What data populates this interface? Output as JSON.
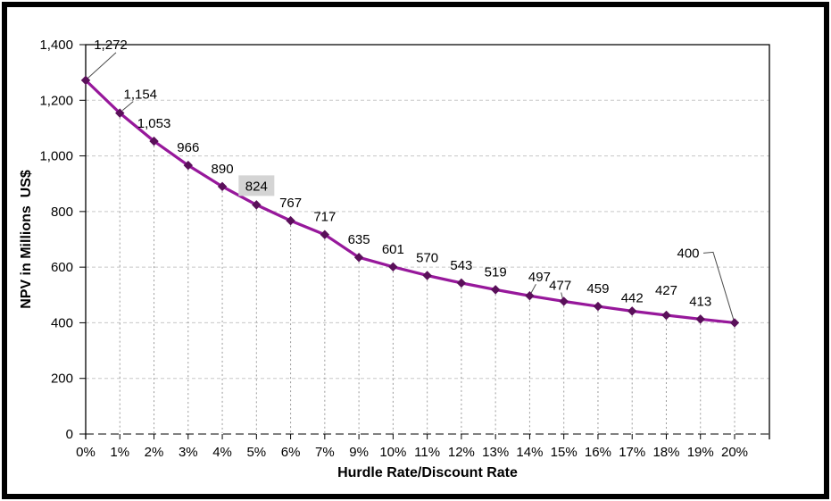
{
  "chart_data": {
    "type": "line",
    "title": "",
    "xlabel": "Hurdle Rate/Discount Rate",
    "ylabel": "NPV in Millions  US$",
    "categories": [
      "0%",
      "1%",
      "2%",
      "3%",
      "4%",
      "5%",
      "6%",
      "7%",
      "9%",
      "10%",
      "11%",
      "12%",
      "13%",
      "14%",
      "15%",
      "16%",
      "17%",
      "18%",
      "19%",
      "20%"
    ],
    "values": [
      1272,
      1154,
      1053,
      966,
      890,
      824,
      767,
      717,
      635,
      601,
      570,
      543,
      519,
      497,
      477,
      459,
      442,
      427,
      413,
      400
    ],
    "data_labels": [
      "1,272",
      "1,154",
      "1,053",
      "966",
      "890",
      "824",
      "767",
      "717",
      "635",
      "601",
      "570",
      "543",
      "519",
      "497",
      "477",
      "459",
      "442",
      "427",
      "413",
      "400"
    ],
    "highlighted_label": "824",
    "ylim": [
      0,
      1400
    ],
    "ytick_step": 200,
    "ytick_labels": [
      "0",
      "200",
      "400",
      "600",
      "800",
      "1,000",
      "1,200",
      "1,400"
    ],
    "legend": "none",
    "grid": "horizontal dashed gridlines; dashed vertical drop lines from each point to the category axis",
    "label_placement": {
      "0": {
        "dx": 28,
        "dy": -35,
        "leader": [
          [
            34,
            -31
          ],
          [
            2,
            -2
          ]
        ]
      },
      "1": {
        "dx": 23,
        "dy": -16,
        "leader": [
          [
            15,
            -13
          ],
          [
            3,
            -3
          ]
        ]
      },
      "5": {
        "dx": 0,
        "dy": -16,
        "bg": true
      },
      "13": {
        "dx": 11,
        "dy": -16,
        "leader": [
          [
            7,
            -13
          ],
          [
            1,
            -2
          ]
        ]
      },
      "14": {
        "dx": -4,
        "dy": -13,
        "leader": [
          [
            -3,
            -10
          ],
          [
            -1,
            -2
          ]
        ]
      },
      "16": {
        "dx": 0,
        "dy": -10
      },
      "17": {
        "dx": 0,
        "dy": -23
      },
      "19": {
        "dx": -52,
        "dy": -73,
        "leader": [
          [
            -35,
            -78
          ],
          [
            -24,
            -79
          ],
          [
            -1,
            -3
          ]
        ]
      },
      "default": {
        "dx": 0,
        "dy": -15
      }
    },
    "colors": {
      "series_line": "#97189B",
      "marker": "#5A105A",
      "gridline": "#C8C8C8",
      "zero_line": "#808080",
      "drop_line": "#9B9B9B",
      "axis_line": "#000000",
      "leader_line": "#4D4D4D",
      "label_highlight_bg": "#D4D4D4",
      "text": "#000000",
      "outer_frame": "#000000"
    }
  }
}
